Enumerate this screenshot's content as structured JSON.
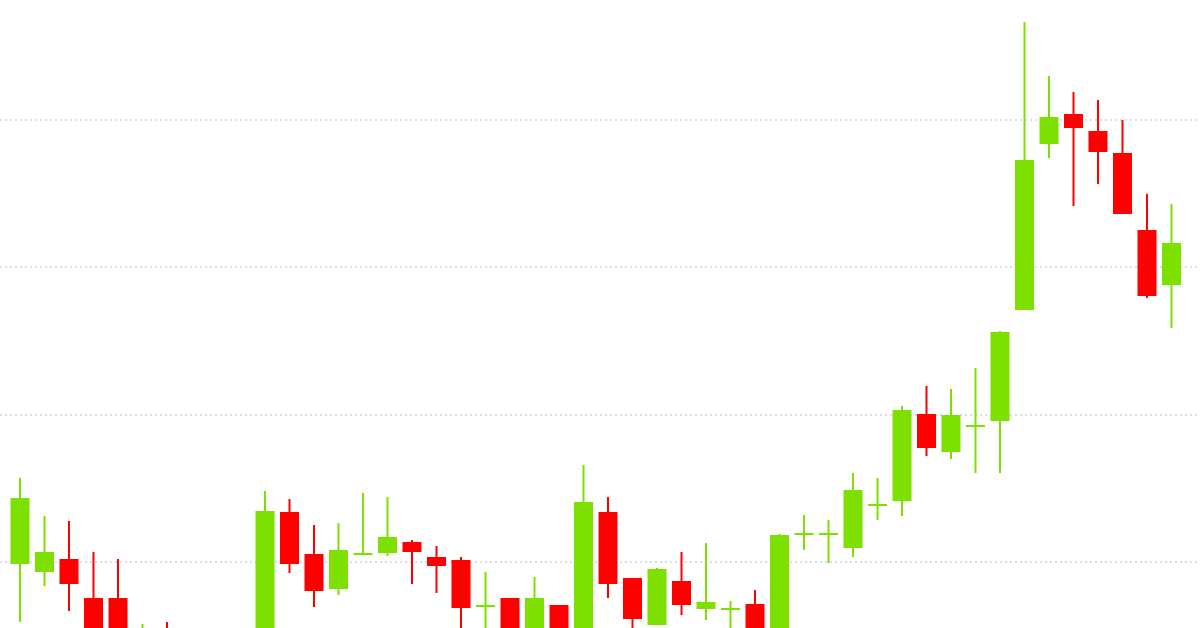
{
  "chart_data": {
    "type": "candlestick",
    "title": "",
    "xlabel": "",
    "ylabel": "",
    "grid": true,
    "grid_style": "dotted",
    "legend": "none",
    "ylim": [
      0,
      628
    ],
    "gridlines": [
      66,
      213,
      361,
      508
    ],
    "colors": {
      "up": "#7ee000",
      "down": "#ff0000",
      "grid": "#c8c8e6",
      "background": "#ffffff"
    },
    "candles": [
      {
        "o": 64,
        "h": 150,
        "l": 6,
        "c": 130
      },
      {
        "o": 56,
        "h": 112,
        "l": 42,
        "c": 76
      },
      {
        "o": 69,
        "h": 107,
        "l": 17,
        "c": 44
      },
      {
        "o": 30,
        "h": 76,
        "l": -10,
        "c": -2
      },
      {
        "o": 30,
        "h": 69,
        "l": -10,
        "c": -2
      },
      {
        "o": -10,
        "h": 4,
        "l": -10,
        "c": -8
      },
      {
        "o": -8,
        "h": 6,
        "l": -10,
        "c": -10
      },
      null,
      null,
      null,
      {
        "o": -10,
        "h": 137,
        "l": -10,
        "c": 117
      },
      {
        "o": 116,
        "h": 129,
        "l": 55,
        "c": 64
      },
      {
        "o": 74,
        "h": 103,
        "l": 21,
        "c": 37
      },
      {
        "o": 39,
        "h": 105,
        "l": 33,
        "c": 78
      },
      {
        "o": 75,
        "h": 135,
        "l": 74,
        "c": 75
      },
      {
        "o": 75,
        "h": 131,
        "l": 72,
        "c": 91
      },
      {
        "o": 86,
        "h": 88,
        "l": 44,
        "c": 76
      },
      {
        "o": 71,
        "h": 82,
        "l": 35,
        "c": 62
      },
      {
        "o": 68,
        "h": 71,
        "l": -10,
        "c": 20
      },
      {
        "o": 23,
        "h": 56,
        "l": -10,
        "c": 23
      },
      {
        "o": 30,
        "h": 30,
        "l": -10,
        "c": -10
      },
      {
        "o": -10,
        "h": 51,
        "l": -10,
        "c": 30
      },
      {
        "o": 23,
        "h": 23,
        "l": -10,
        "c": -10
      },
      {
        "o": -10,
        "h": 163,
        "l": -10,
        "c": 126
      },
      {
        "o": 116,
        "h": 131,
        "l": 30,
        "c": 44
      },
      {
        "o": 50,
        "h": 50,
        "l": -2,
        "c": 9
      },
      {
        "o": 3,
        "h": 60,
        "l": 3,
        "c": 59
      },
      {
        "o": 47,
        "h": 76,
        "l": 13,
        "c": 23
      },
      {
        "o": 19,
        "h": 85,
        "l": 8,
        "c": 26
      },
      {
        "o": 20,
        "h": 27,
        "l": -10,
        "c": 20
      },
      {
        "o": 24,
        "h": 38,
        "l": -10,
        "c": -10
      },
      {
        "o": -10,
        "h": 94,
        "l": -10,
        "c": 93
      },
      {
        "o": 95,
        "h": 113,
        "l": 78,
        "c": 95
      },
      {
        "o": 95,
        "h": 108,
        "l": 65,
        "c": 95
      },
      {
        "o": 80,
        "h": 155,
        "l": 71,
        "c": 138
      },
      {
        "o": 124,
        "h": 150,
        "l": 108,
        "c": 124
      },
      {
        "o": 127,
        "h": 222,
        "l": 112,
        "c": 218
      },
      {
        "o": 214,
        "h": 242,
        "l": 172,
        "c": 180
      },
      {
        "o": 176,
        "h": 239,
        "l": 169,
        "c": 213
      },
      {
        "o": 201,
        "h": 260,
        "l": 155,
        "c": 203
      },
      {
        "o": 207,
        "h": 297,
        "l": 155,
        "c": 296
      },
      {
        "o": 318,
        "h": 606,
        "l": 318,
        "c": 468
      },
      {
        "o": 484,
        "h": 552,
        "l": 470,
        "c": 511
      },
      {
        "o": 514,
        "h": 536,
        "l": 422,
        "c": 500
      },
      {
        "o": 497,
        "h": 528,
        "l": 444,
        "c": 476
      },
      {
        "o": 475,
        "h": 508,
        "l": 414,
        "c": 414
      },
      {
        "o": 398,
        "h": 434,
        "l": 330,
        "c": 332
      },
      {
        "o": 343,
        "h": 424,
        "l": 300,
        "c": 385
      }
    ]
  }
}
